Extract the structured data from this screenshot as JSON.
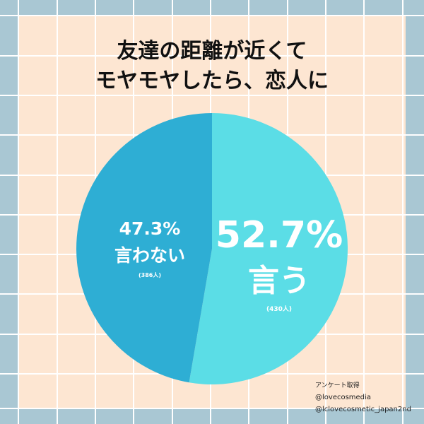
{
  "colors": {
    "frame": "#a9c7d3",
    "panel": "#fde6d2",
    "grid": "#ffffff",
    "slice_no": "#2eaed4",
    "slice_yes": "#5bdde6",
    "label_text": "#ffffff",
    "title_text": "#111111"
  },
  "title_lines": [
    "友達の距離が近くて",
    "モヤモヤしたら、恋人に"
  ],
  "chart_data": {
    "type": "pie",
    "title": "友達の距離が近くて モヤモヤしたら、恋人に",
    "slices": [
      {
        "label": "言う",
        "percent_text": "52.7%",
        "count_text": "(430人)",
        "value": 52.7
      },
      {
        "label": "言わない",
        "percent_text": "47.3%",
        "count_text": "(386人)",
        "value": 47.3
      }
    ]
  },
  "credits": [
    "アンケート取得",
    "@lovecosmedia",
    "@lclovecosmetic_japan2nd"
  ]
}
